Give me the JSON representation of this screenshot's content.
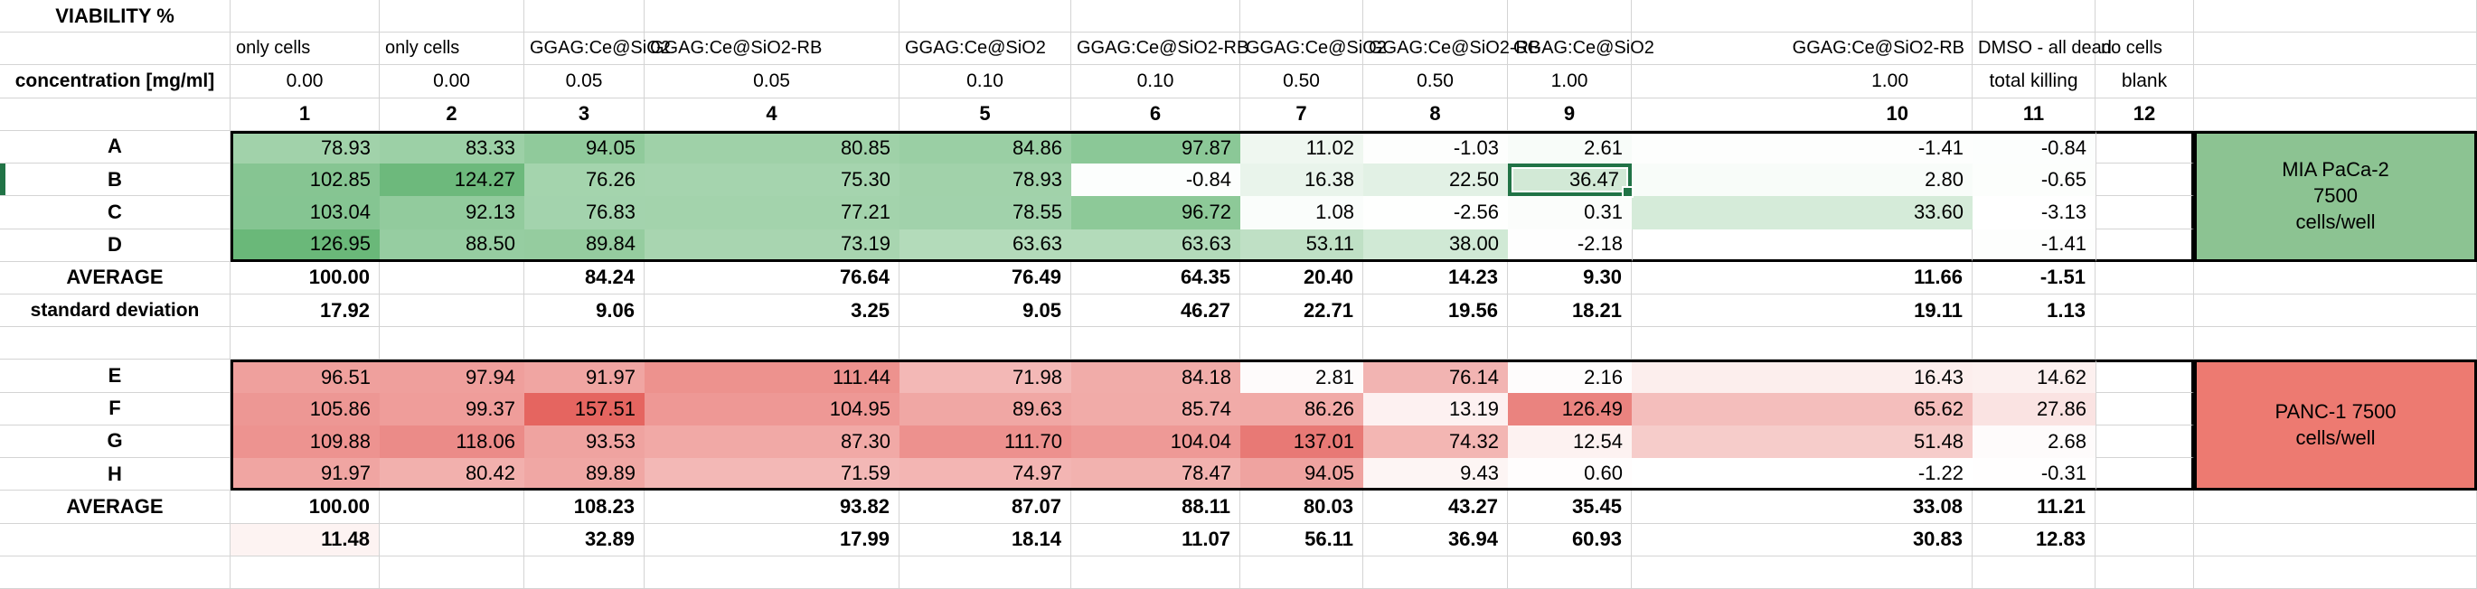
{
  "sheet": {
    "title": "VIABILITY %",
    "header": {
      "sample_labels": [
        "only cells",
        "only cells",
        "GGAG:Ce@SiO2",
        "GGAG:Ce@SiO2-RB",
        "GGAG:Ce@SiO2",
        "GGAG:Ce@SiO2-RB",
        "GGAG:Ce@SiO2",
        "GGAG:Ce@SiO2-RB",
        "GGAG:Ce@SiO2",
        "GGAG:Ce@SiO2-RB",
        "DMSO - all dead",
        "no cells"
      ],
      "concentration_label": "concentration [mg/ml]",
      "concentrations": [
        "0.00",
        "0.00",
        "0.05",
        "0.05",
        "0.10",
        "0.10",
        "0.50",
        "0.50",
        "1.00",
        "1.00",
        "total killing",
        "blank"
      ],
      "column_numbers": [
        "1",
        "2",
        "3",
        "4",
        "5",
        "6",
        "7",
        "8",
        "9",
        "10",
        "11",
        "12"
      ]
    },
    "blocks": [
      {
        "id": "mia-paca-2",
        "side_lines": [
          "MIA PaCa-2",
          "7500",
          "cells/well"
        ],
        "side_color": "#8cc392",
        "scale": {
          "min": -3.13,
          "max": 126.95,
          "max_color": "#6ab879"
        },
        "rows": [
          {
            "label": "A",
            "values": [
              "78.93",
              "83.33",
              "94.05",
              "80.85",
              "84.86",
              "97.87",
              "11.02",
              "-1.03",
              "2.61",
              "-1.41",
              "-0.84",
              ""
            ]
          },
          {
            "label": "B",
            "values": [
              "102.85",
              "124.27",
              "76.26",
              "75.30",
              "78.93",
              "-0.84",
              "16.38",
              "22.50",
              "36.47",
              "2.80",
              "-0.65",
              ""
            ]
          },
          {
            "label": "C",
            "values": [
              "103.04",
              "92.13",
              "76.83",
              "77.21",
              "78.55",
              "96.72",
              "1.08",
              "-2.56",
              "0.31",
              "33.60",
              "-3.13",
              ""
            ]
          },
          {
            "label": "D",
            "values": [
              "126.95",
              "88.50",
              "89.84",
              "73.19",
              "63.63",
              "63.63",
              "53.11",
              "38.00",
              "-2.18",
              "",
              "-1.41",
              ""
            ]
          }
        ],
        "average": {
          "label": "AVERAGE",
          "values": [
            "100.00",
            "",
            "84.24",
            "76.64",
            "76.49",
            "64.35",
            "20.40",
            "14.23",
            "9.30",
            "11.66",
            "-1.51",
            ""
          ]
        },
        "std": {
          "label": "standard deviation",
          "values": [
            "17.92",
            "",
            "9.06",
            "3.25",
            "9.05",
            "46.27",
            "22.71",
            "19.56",
            "18.21",
            "19.11",
            "1.13",
            ""
          ],
          "scale_cols": []
        }
      },
      {
        "id": "panc-1",
        "side_lines": [
          "PANC-1 7500",
          "cells/well"
        ],
        "side_color": "#ed7a71",
        "scale": {
          "min": -1.22,
          "max": 157.51,
          "max_color": "#e56560"
        },
        "rows": [
          {
            "label": "E",
            "values": [
              "96.51",
              "97.94",
              "91.97",
              "111.44",
              "71.98",
              "84.18",
              "2.81",
              "76.14",
              "2.16",
              "16.43",
              "14.62",
              ""
            ]
          },
          {
            "label": "F",
            "values": [
              "105.86",
              "99.37",
              "157.51",
              "104.95",
              "89.63",
              "85.74",
              "86.26",
              "13.19",
              "126.49",
              "65.62",
              "27.86",
              ""
            ]
          },
          {
            "label": "G",
            "values": [
              "109.88",
              "118.06",
              "93.53",
              "87.30",
              "111.70",
              "104.04",
              "137.01",
              "74.32",
              "12.54",
              "51.48",
              "2.68",
              ""
            ]
          },
          {
            "label": "H",
            "values": [
              "91.97",
              "80.42",
              "89.89",
              "71.59",
              "74.97",
              "78.47",
              "94.05",
              "9.43",
              "0.60",
              "-1.22",
              "-0.31",
              ""
            ]
          }
        ],
        "average": {
          "label": "AVERAGE",
          "values": [
            "100.00",
            "",
            "108.23",
            "93.82",
            "87.07",
            "88.11",
            "80.03",
            "43.27",
            "35.45",
            "33.08",
            "11.21",
            ""
          ]
        },
        "std": {
          "label": "",
          "values": [
            "11.48",
            "",
            "32.89",
            "17.99",
            "18.14",
            "11.07",
            "56.11",
            "36.94",
            "60.93",
            "30.83",
            "12.83",
            ""
          ],
          "scale_cols": [
            1
          ]
        }
      }
    ],
    "selection": {
      "block": 0,
      "row_label": "B",
      "row_index": 1,
      "col": 9,
      "value": "36.47",
      "color": "#217346"
    },
    "colors": {
      "gridline": "#d4d4d4",
      "thick_border": "#000000",
      "background": "#ffffff",
      "text": "#000000"
    }
  }
}
